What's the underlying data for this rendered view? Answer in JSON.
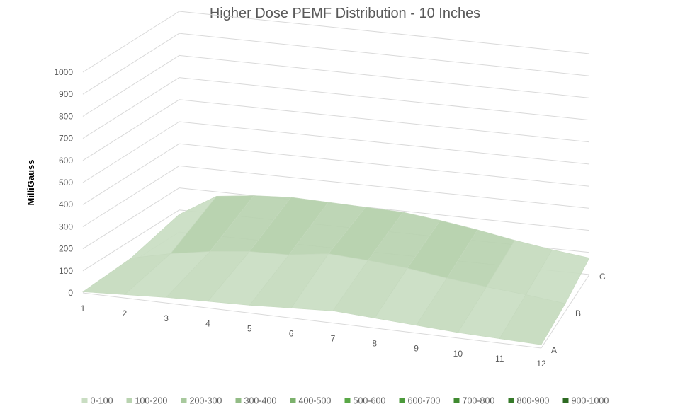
{
  "chart_data": {
    "type": "surface",
    "title": "Higher Dose PEMF Distribution - 10 Inches",
    "ylabel": "MilliGauss",
    "x_categories": [
      "1",
      "2",
      "3",
      "4",
      "5",
      "6",
      "7",
      "8",
      "9",
      "10",
      "11",
      "12"
    ],
    "depth_categories": [
      "A",
      "B",
      "C"
    ],
    "zlim": [
      0,
      1000
    ],
    "z_ticks": [
      "0",
      "100",
      "200",
      "300",
      "400",
      "500",
      "600",
      "700",
      "800",
      "900",
      "1000"
    ],
    "grid": true,
    "legend_position": "bottom",
    "series": [
      {
        "name": "A",
        "values": [
          5,
          15,
          25,
          30,
          35,
          45,
          55,
          45,
          35,
          25,
          20,
          15
        ]
      },
      {
        "name": "B",
        "values": [
          20,
          60,
          90,
          110,
          115,
          140,
          130,
          115,
          90,
          70,
          55,
          35
        ]
      },
      {
        "name": "C",
        "values": [
          80,
          180,
          200,
          210,
          205,
          200,
          195,
          175,
          150,
          120,
          95,
          75
        ]
      }
    ],
    "legend": [
      {
        "label": "0-100",
        "color": "#c9ddc2"
      },
      {
        "label": "100-200",
        "color": "#b9d3b0"
      },
      {
        "label": "200-300",
        "color": "#a8c99d"
      },
      {
        "label": "300-400",
        "color": "#93bc86"
      },
      {
        "label": "400-500",
        "color": "#7cb16c"
      },
      {
        "label": "500-600",
        "color": "#5aa847"
      },
      {
        "label": "600-700",
        "color": "#4c9a3b"
      },
      {
        "label": "700-800",
        "color": "#3f8a30"
      },
      {
        "label": "800-900",
        "color": "#367a29"
      },
      {
        "label": "900-1000",
        "color": "#2d6a22"
      }
    ]
  }
}
